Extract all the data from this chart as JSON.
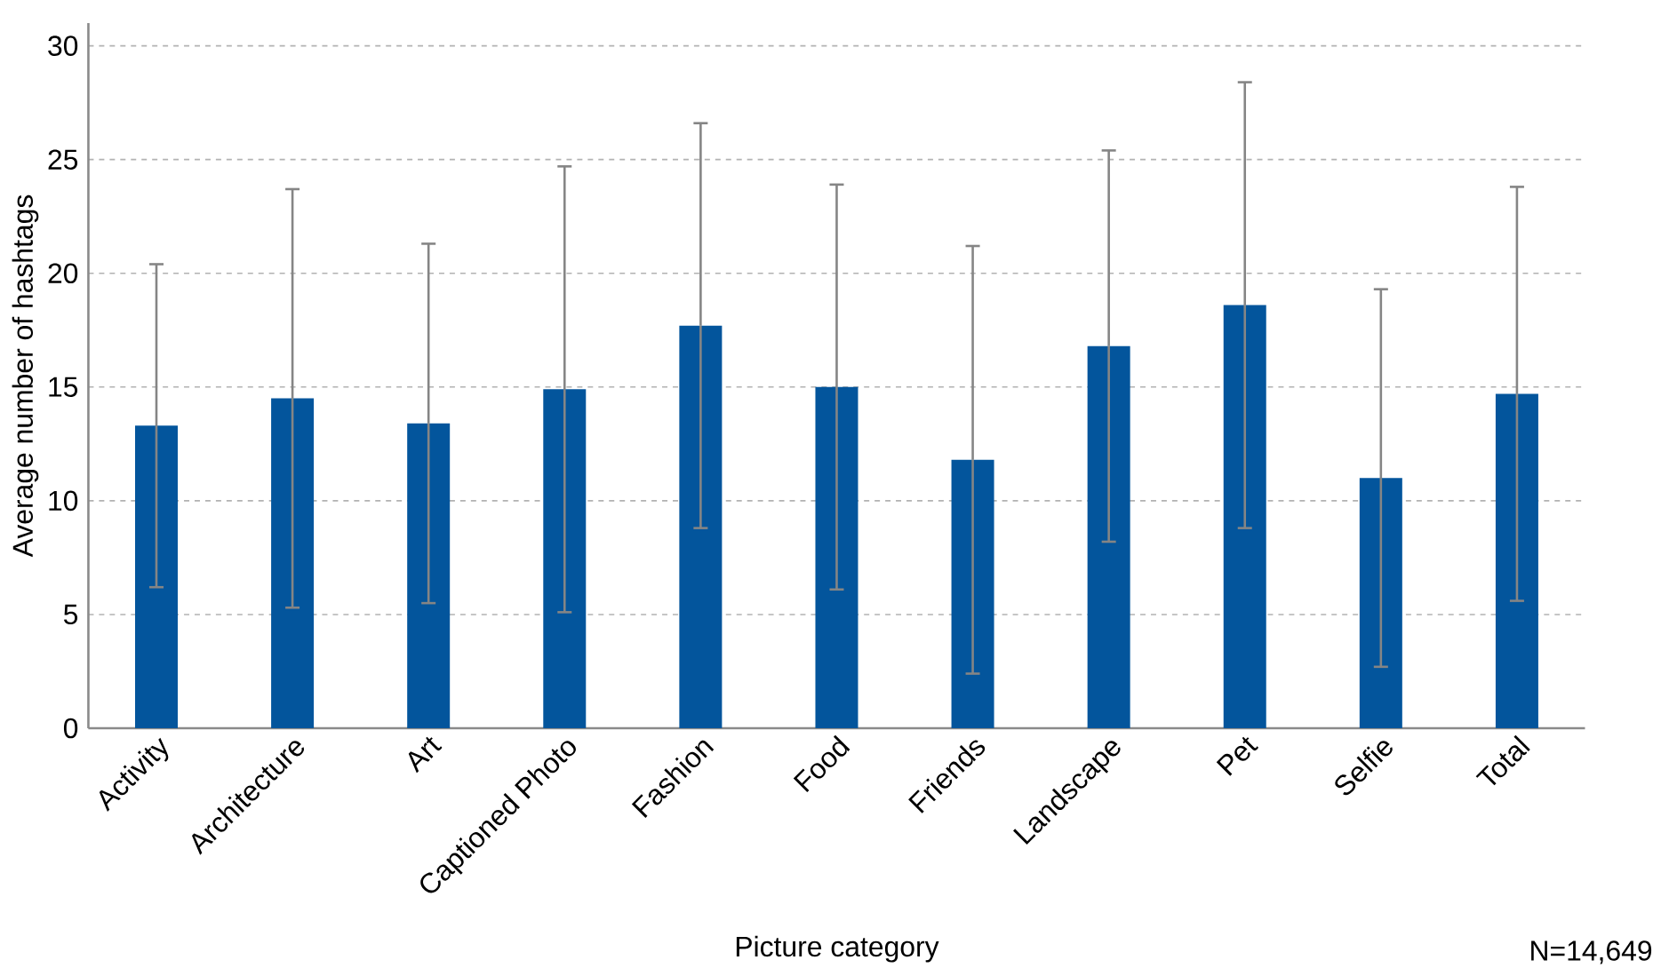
{
  "chart_data": {
    "type": "bar",
    "xlabel": "Picture category",
    "ylabel": "Average number of hashtags",
    "categories": [
      "Activity",
      "Architecture",
      "Art",
      "Captioned Photo",
      "Fashion",
      "Food",
      "Friends",
      "Landscape",
      "Pet",
      "Selfie",
      "Total"
    ],
    "values": [
      13.3,
      14.5,
      13.4,
      14.9,
      17.7,
      15.0,
      11.8,
      16.8,
      18.6,
      11.0,
      14.7
    ],
    "errors": [
      7.1,
      9.2,
      7.9,
      9.8,
      8.9,
      8.9,
      9.4,
      8.6,
      9.8,
      8.3,
      9.1
    ],
    "color": "#03559c",
    "ylim": [
      0,
      31
    ],
    "yticks": [
      0,
      5,
      10,
      15,
      20,
      25,
      30
    ],
    "grid": "y",
    "annotations": [
      "N=14,649"
    ]
  }
}
